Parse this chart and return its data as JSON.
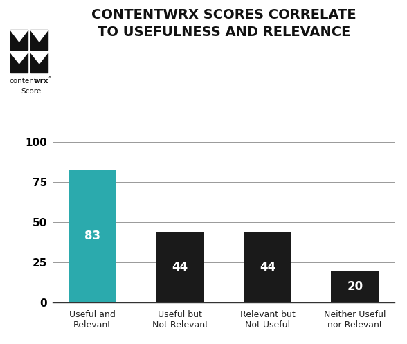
{
  "title_line1": "CONTENTWRX SCORES CORRELATE",
  "title_line2": "TO USEFULNESS AND RELEVANCE",
  "categories": [
    "Useful and\nRelevant",
    "Useful but\nNot Relevant",
    "Relevant but\nNot Useful",
    "Neither Useful\nnor Relevant"
  ],
  "values": [
    83,
    44,
    44,
    20
  ],
  "bar_colors": [
    "#2BAAAD",
    "#1a1a1a",
    "#1a1a1a",
    "#1a1a1a"
  ],
  "label_color": "#ffffff",
  "yticks": [
    0,
    25,
    50,
    75,
    100
  ],
  "ylim": [
    0,
    107
  ],
  "background_color": "#ffffff",
  "title_fontsize": 14,
  "bar_label_fontsize": 12,
  "tick_fontsize": 11,
  "xtick_fontsize": 9,
  "grid_color": "#999999",
  "logo_text_normal": "content",
  "logo_text_bold": "wrx",
  "logo_text_super": "°",
  "logo_score": "Score",
  "bar_width": 0.55
}
